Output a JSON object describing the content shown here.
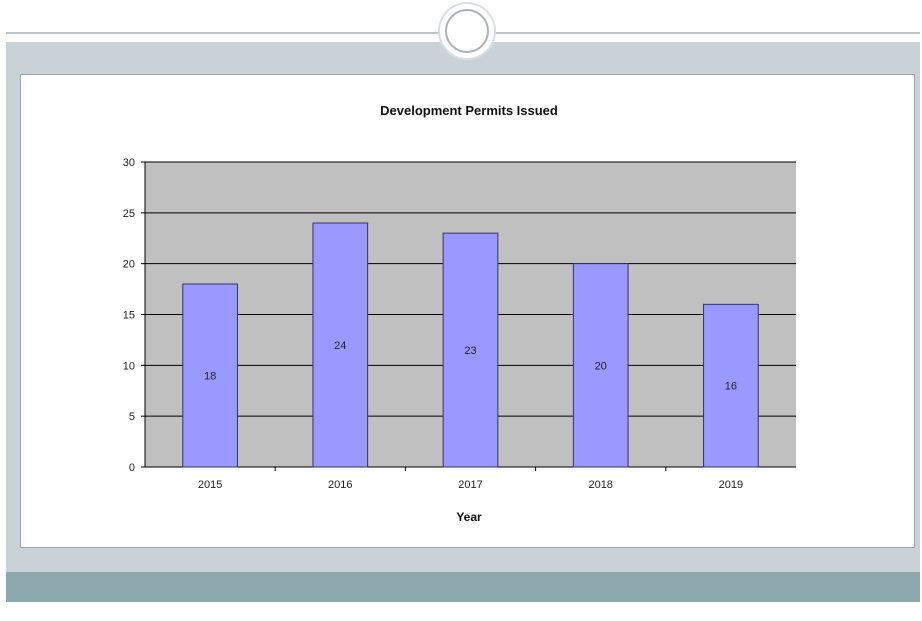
{
  "chart_data": {
    "type": "bar",
    "title": "Development Permits Issued",
    "xlabel": "Year",
    "ylabel": "",
    "categories": [
      "2015",
      "2016",
      "2017",
      "2018",
      "2019"
    ],
    "values": [
      18,
      24,
      23,
      20,
      16
    ],
    "data_labels": [
      "18",
      "24",
      "23",
      "20",
      "16"
    ],
    "ylim": [
      0,
      30
    ],
    "yticks": [
      "0",
      "5",
      "10",
      "15",
      "20",
      "25",
      "30"
    ],
    "grid": true,
    "legend": "none",
    "colors": {
      "bar": "#9999ff",
      "bar_border": "#333366",
      "plot_background": "#c0c0c0",
      "gridline": "#000000"
    }
  }
}
